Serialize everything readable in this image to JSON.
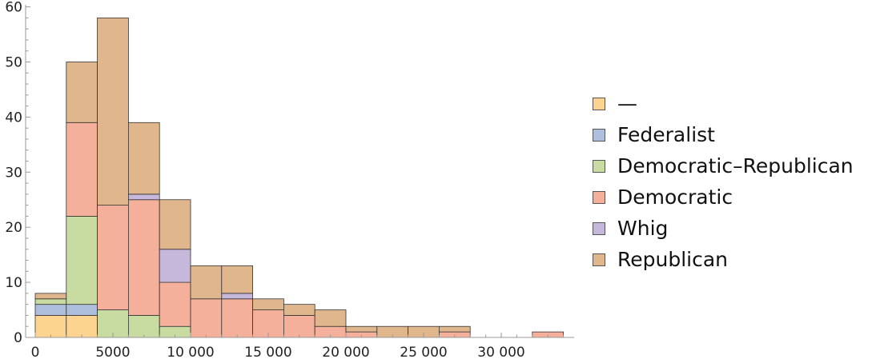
{
  "chart_data": {
    "type": "bar",
    "stacked": true,
    "histogram": true,
    "bin_edges": [
      0,
      2000,
      4000,
      6000,
      8000,
      10000,
      12000,
      14000,
      16000,
      18000,
      20000,
      22000,
      24000,
      26000,
      28000,
      30000,
      32000,
      34000
    ],
    "series": [
      {
        "name": "—",
        "color": "#fcd48f",
        "values": [
          4,
          4,
          0,
          0,
          0,
          0,
          0,
          0,
          0,
          0,
          0,
          0,
          0,
          0,
          0,
          0,
          0
        ]
      },
      {
        "name": "Federalist",
        "color": "#adbfdc",
        "values": [
          2,
          2,
          0,
          0,
          0,
          0,
          0,
          0,
          0,
          0,
          0,
          0,
          0,
          0,
          0,
          0,
          0
        ]
      },
      {
        "name": "Democratic–Republican",
        "color": "#c8dba0",
        "values": [
          1,
          16,
          5,
          4,
          2,
          0,
          0,
          0,
          0,
          0,
          0,
          0,
          0,
          0,
          0,
          0,
          0
        ]
      },
      {
        "name": "Democratic",
        "color": "#f4b09b",
        "values": [
          0,
          17,
          19,
          21,
          8,
          7,
          7,
          5,
          4,
          2,
          1,
          0,
          0,
          1,
          0,
          0,
          1
        ]
      },
      {
        "name": "Whig",
        "color": "#c6b8da",
        "values": [
          0,
          0,
          0,
          1,
          6,
          0,
          1,
          0,
          0,
          0,
          0,
          0,
          0,
          0,
          0,
          0,
          0
        ]
      },
      {
        "name": "Republican",
        "color": "#e0b78d",
        "values": [
          1,
          11,
          34,
          13,
          9,
          6,
          5,
          2,
          2,
          3,
          1,
          2,
          2,
          1,
          0,
          0,
          0
        ]
      }
    ],
    "x_ticks": [
      "0",
      "5000",
      "10 000",
      "15 000",
      "20 000",
      "25 000",
      "30 000"
    ],
    "y_ticks": [
      "0",
      "10",
      "20",
      "30",
      "40",
      "50",
      "60"
    ],
    "xlim": [
      0,
      34000
    ],
    "ylim": [
      0,
      60
    ],
    "legend_position": "right",
    "grid": false
  }
}
